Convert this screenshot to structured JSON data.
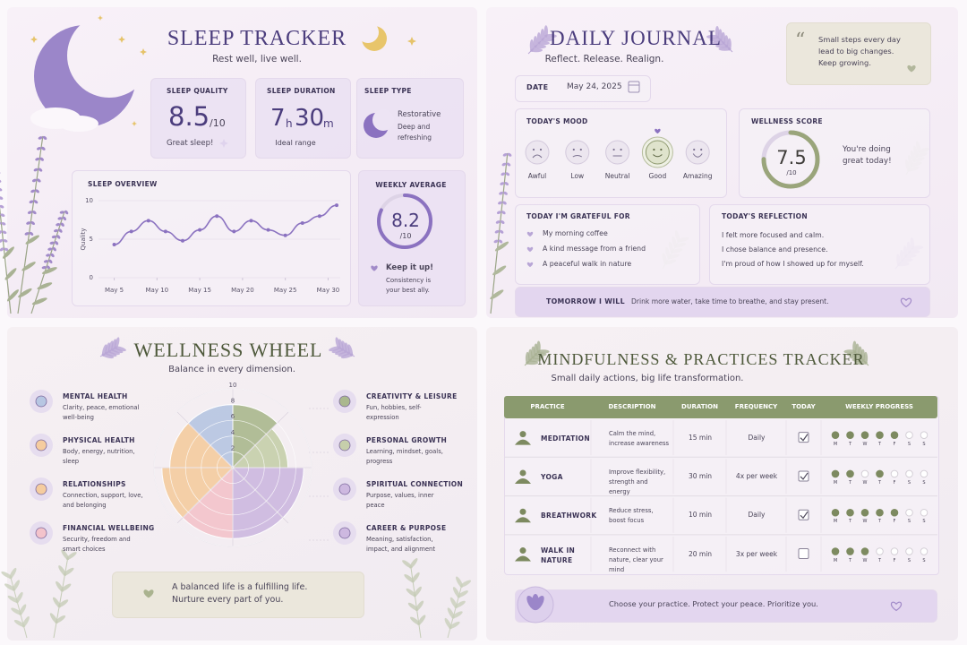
{
  "sleep_tracker": {
    "title": "SLEEP TRACKER",
    "subtitle": "Rest well, live well.",
    "quality": {
      "label": "SLEEP QUALITY",
      "value": 8.5,
      "scale": {
        "value": 10,
        "label": "/10"
      },
      "note": "Great sleep!"
    },
    "duration": {
      "label": "SLEEP DURATION",
      "hours": 7,
      "hours_unit": "h",
      "minutes": 30,
      "minutes_unit": "m",
      "note": "Ideal range"
    },
    "type": {
      "label": "SLEEP TYPE",
      "name": "Restorative",
      "note": "Deep and refreshing"
    },
    "weekly_average": {
      "label": "WEEKLY AVERAGE",
      "value": 8.2,
      "scale": {
        "value": 10,
        "label": "/10"
      },
      "message": "Keep it up!",
      "note": "Consistency is your best ally."
    }
  },
  "daily_journal": {
    "title": "DAILY JOURNAL",
    "subtitle": "Reflect. Release. Realign.",
    "quote": "Small steps every day lead to big changes. Keep growing.",
    "date": {
      "label": "DATE",
      "value": "May 24, 2025"
    },
    "mood": {
      "label": "TODAY'S MOOD",
      "options": [
        "Awful",
        "Low",
        "Neutral",
        "Good",
        "Amazing"
      ],
      "selected": 3
    },
    "wellness_score": {
      "label": "WELLNESS SCORE",
      "value": 7.5,
      "scale": {
        "value": 10,
        "label": "/10"
      },
      "note": "You're doing great today!"
    },
    "grateful": {
      "label": "TODAY I'M GRATEFUL FOR",
      "items": [
        "My morning coffee",
        "A kind message from a friend",
        "A peaceful walk in nature"
      ]
    },
    "reflection": {
      "label": "TODAY'S REFLECTION",
      "items": [
        "I felt more focused and calm.",
        "I chose balance and presence.",
        "I'm proud of how I showed up for myself."
      ]
    },
    "tomorrow": {
      "label": "TOMORROW I WILL",
      "text": "Drink more water, take time to breathe, and stay present."
    }
  },
  "wellness_wheel": {
    "quote_lines": [
      "A balanced life is a fulfilling life.",
      "Nurture every part of you."
    ]
  },
  "mindfulness_tracker": {
    "title": "MINDFULNESS & PRACTICES TRACKER",
    "subtitle": "Small daily actions, big life transformation.",
    "columns": [
      "PRACTICE",
      "DESCRIPTION",
      "DURATION",
      "FREQUENCY",
      "TODAY",
      "WEEKLY PROGRESS"
    ],
    "days": [
      "M",
      "T",
      "W",
      "T",
      "F",
      "S",
      "S"
    ],
    "rows": [
      {
        "practice": "MEDITATION",
        "description": "Calm the mind, increase awareness",
        "duration": "15 min",
        "frequency": "Daily",
        "today": true,
        "progress": [
          true,
          true,
          true,
          true,
          true,
          false,
          false
        ]
      },
      {
        "practice": "YOGA",
        "description": "Improve flexibility, strength and energy",
        "duration": "30 min",
        "frequency": "4x per week",
        "today": true,
        "progress": [
          true,
          true,
          false,
          true,
          false,
          false,
          false
        ]
      },
      {
        "practice": "BREATHWORK",
        "description": "Reduce stress, boost focus",
        "duration": "10 min",
        "frequency": "Daily",
        "today": true,
        "progress": [
          true,
          true,
          true,
          true,
          true,
          false,
          false
        ]
      },
      {
        "practice": "WALK IN NATURE",
        "description": "Reconnect with nature, clear your mind",
        "duration": "20 min",
        "frequency": "3x per week",
        "today": false,
        "progress": [
          true,
          true,
          true,
          false,
          false,
          false,
          false
        ]
      }
    ],
    "footer": "Choose your practice. Protect your peace. Prioritize you."
  },
  "chart_data": [
    {
      "type": "line",
      "title": "SLEEP OVERVIEW",
      "y_label": "Quality",
      "x": [
        5,
        7,
        9,
        11,
        13,
        15,
        17,
        19,
        21,
        23,
        25,
        27,
        29,
        31
      ],
      "values": [
        4.3,
        6,
        7.4,
        6,
        4.8,
        6.2,
        8,
        6,
        7.4,
        6.2,
        5.5,
        7.1,
        8,
        9.4
      ],
      "color": "#8b72c0",
      "xlim": [
        4,
        31
      ],
      "xticks": [
        {
          "value": 5,
          "label": "May 5"
        },
        {
          "value": 10,
          "label": "May 10"
        },
        {
          "value": 15,
          "label": "May 15"
        },
        {
          "value": 20,
          "label": "May 20"
        },
        {
          "value": 25,
          "label": "May 25"
        },
        {
          "value": 30,
          "label": "May 30"
        }
      ],
      "ylim": [
        0,
        10
      ],
      "yticks": [
        0,
        5,
        10
      ],
      "grid": true
    },
    {
      "type": "polar",
      "title": "WELLNESS WHEEL",
      "subtitle": "Balance in every dimension.",
      "categories": [
        "CREATIVITY & LEISURE",
        "PERSONAL GROWTH",
        "SPIRITUAL CONNECTION",
        "CAREER & PURPOSE",
        "FINANCIAL WELLBEING",
        "RELATIONSHIPS",
        "PHYSICAL HEALTH",
        "MENTAL HEALTH"
      ],
      "descriptions": [
        "Fun, hobbies, self-expression",
        "Learning, mindset, goals, progress",
        "Purpose, values, inner peace",
        "Meaning, satisfaction, impact, and alignment",
        "Security, freedom and smart choices",
        "Connection, support, love, and belonging",
        "Body, energy, nutrition, sleep",
        "Clarity, peace, emotional well-being"
      ],
      "values": [
        8,
        7,
        9,
        9,
        9,
        9,
        8,
        8
      ],
      "colors": [
        "#aab88e",
        "#c6cfab",
        "#cdb8e0",
        "#cdb8e0",
        "#f3c3cb",
        "#f5cc9f",
        "#f5cc9f",
        "#b7c6e2"
      ],
      "ylim": [
        0,
        10
      ],
      "yticks": [
        2,
        4,
        6,
        8,
        10
      ]
    }
  ]
}
